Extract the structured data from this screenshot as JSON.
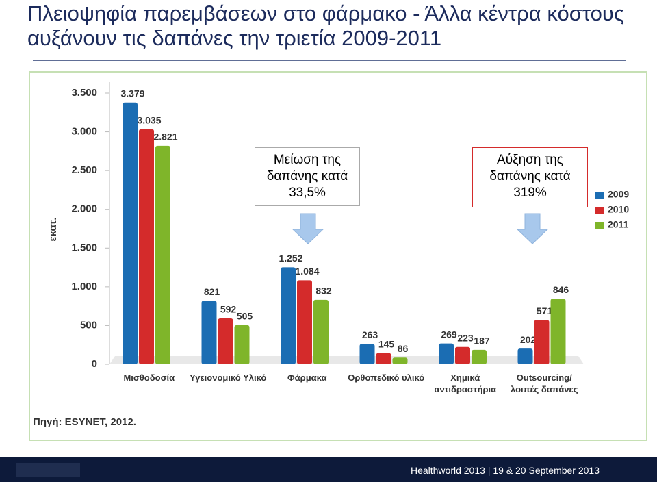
{
  "title": "Πλειοψηφία παρεμβάσεων  στο φάρμακο - Άλλα κέντρα κόστους αυξάνουν τις δαπάνες την τριετία 2009-2011",
  "chart_data": {
    "type": "bar",
    "y_label": "εκατ.",
    "categories": [
      "Μισθοδοσία",
      "Υγειονομικό Υλικό",
      "Φάρμακα",
      "Ορθοπεδικό υλικό",
      "Χημικά αντιδραστήρια",
      "Outsourcing/ λοιπές δαπάνες"
    ],
    "series": [
      {
        "name": "2009",
        "color": "#1b6db3",
        "values": [
          3379,
          821,
          1252,
          263,
          269,
          202
        ],
        "value_labels": [
          "3.379",
          "821",
          "1.252",
          "263",
          "269",
          "202"
        ]
      },
      {
        "name": "2010",
        "color": "#d42b2b",
        "values": [
          3035,
          592,
          1084,
          145,
          223,
          571
        ],
        "value_labels": [
          "3.035",
          "592",
          "1.084",
          "145",
          "223",
          "571"
        ]
      },
      {
        "name": "2011",
        "color": "#7fb52a",
        "values": [
          2821,
          505,
          832,
          86,
          187,
          846
        ],
        "value_labels": [
          "2.821",
          "505",
          "832",
          "86",
          "187",
          "846"
        ]
      }
    ],
    "ylim": [
      0,
      3500
    ],
    "yticks": [
      0,
      500,
      {
        "value": 1000,
        "label": "1.000"
      },
      {
        "value": 1500,
        "label": "1.500"
      },
      {
        "value": 2000,
        "label": "2.000"
      },
      {
        "value": 2500,
        "label": "2.500"
      },
      {
        "value": 3000,
        "label": "3.000"
      },
      {
        "value": 3500,
        "label": "3.500"
      }
    ],
    "grid": false,
    "legend": "right",
    "annotations": [
      "Μείωση της δαπάνης κατά 33,5%",
      "Αύξηση της δαπάνης κατά 319%"
    ],
    "source": "Πηγή: ESYNET, 2012."
  },
  "footer": "Healthworld 2013 | 19 & 20 September 2013"
}
